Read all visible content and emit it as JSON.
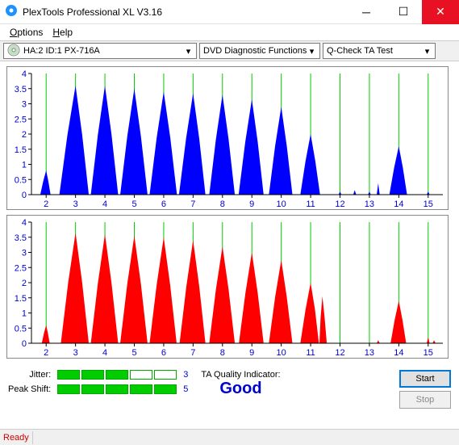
{
  "window": {
    "title": "PlexTools Professional XL V3.16",
    "icon_color": "#1e90ff"
  },
  "menu": {
    "options": "Options",
    "help": "Help"
  },
  "toolbar": {
    "drive": "HA:2 ID:1  PX-716A",
    "func": "DVD Diagnostic Functions",
    "test": "Q-Check TA Test"
  },
  "charts": {
    "ylim": [
      0,
      4
    ],
    "yticks": [
      0,
      0.5,
      1,
      1.5,
      2,
      2.5,
      3,
      3.5,
      4
    ],
    "xlim": [
      1.5,
      15.5
    ],
    "xticks": [
      2,
      3,
      4,
      5,
      6,
      7,
      8,
      9,
      10,
      11,
      12,
      13,
      14,
      15
    ],
    "grid_color": "#00cc00",
    "axis_color": "#000000",
    "text_color": "#0000cd",
    "text_fontsize": 11,
    "blue": {
      "fill": "#0000ff",
      "peaks": [
        {
          "x": 2,
          "h": 0.8,
          "lw": 0.2,
          "rw": 0.15
        },
        {
          "x": 3,
          "h": 3.6,
          "lw": 0.55,
          "rw": 0.45
        },
        {
          "x": 4,
          "h": 3.6,
          "lw": 0.48,
          "rw": 0.45
        },
        {
          "x": 5,
          "h": 3.5,
          "lw": 0.48,
          "rw": 0.45
        },
        {
          "x": 6,
          "h": 3.4,
          "lw": 0.48,
          "rw": 0.45
        },
        {
          "x": 7,
          "h": 3.35,
          "lw": 0.48,
          "rw": 0.42
        },
        {
          "x": 8,
          "h": 3.3,
          "lw": 0.45,
          "rw": 0.42
        },
        {
          "x": 9,
          "h": 3.15,
          "lw": 0.45,
          "rw": 0.4
        },
        {
          "x": 10,
          "h": 2.9,
          "lw": 0.42,
          "rw": 0.38
        },
        {
          "x": 11,
          "h": 2.0,
          "lw": 0.35,
          "rw": 0.32
        },
        {
          "x": 14,
          "h": 1.6,
          "lw": 0.32,
          "rw": 0.28
        }
      ],
      "noise": [
        {
          "x": 12,
          "h": 0.1
        },
        {
          "x": 12.5,
          "h": 0.15
        },
        {
          "x": 13,
          "h": 0.1
        },
        {
          "x": 13.3,
          "h": 0.38
        },
        {
          "x": 15,
          "h": 0.1
        }
      ]
    },
    "red": {
      "fill": "#ff0000",
      "peaks": [
        {
          "x": 2,
          "h": 0.6,
          "lw": 0.15,
          "rw": 0.12
        },
        {
          "x": 3,
          "h": 3.65,
          "lw": 0.5,
          "rw": 0.45
        },
        {
          "x": 4,
          "h": 3.6,
          "lw": 0.48,
          "rw": 0.45
        },
        {
          "x": 5,
          "h": 3.55,
          "lw": 0.48,
          "rw": 0.45
        },
        {
          "x": 6,
          "h": 3.5,
          "lw": 0.48,
          "rw": 0.44
        },
        {
          "x": 7,
          "h": 3.4,
          "lw": 0.46,
          "rw": 0.42
        },
        {
          "x": 8,
          "h": 3.2,
          "lw": 0.45,
          "rw": 0.42
        },
        {
          "x": 9,
          "h": 3.0,
          "lw": 0.44,
          "rw": 0.4
        },
        {
          "x": 10,
          "h": 2.75,
          "lw": 0.42,
          "rw": 0.38
        },
        {
          "x": 11,
          "h": 2.0,
          "lw": 0.35,
          "rw": 0.3
        },
        {
          "x": 11.4,
          "h": 1.55,
          "lw": 0.12,
          "rw": 0.15
        },
        {
          "x": 14,
          "h": 1.4,
          "lw": 0.28,
          "rw": 0.25
        }
      ],
      "noise": [
        {
          "x": 13.3,
          "h": 0.1
        },
        {
          "x": 15,
          "h": 0.2
        },
        {
          "x": 15.2,
          "h": 0.1
        }
      ]
    }
  },
  "meters": {
    "jitter": {
      "label": "Jitter:",
      "filled": 3,
      "total": 5,
      "value": "3"
    },
    "peakshift": {
      "label": "Peak Shift:",
      "filled": 5,
      "total": 5,
      "value": "5"
    }
  },
  "quality": {
    "label": "TA Quality Indicator:",
    "value": "Good"
  },
  "buttons": {
    "start": "Start",
    "stop": "Stop"
  },
  "status": {
    "text": "Ready"
  }
}
